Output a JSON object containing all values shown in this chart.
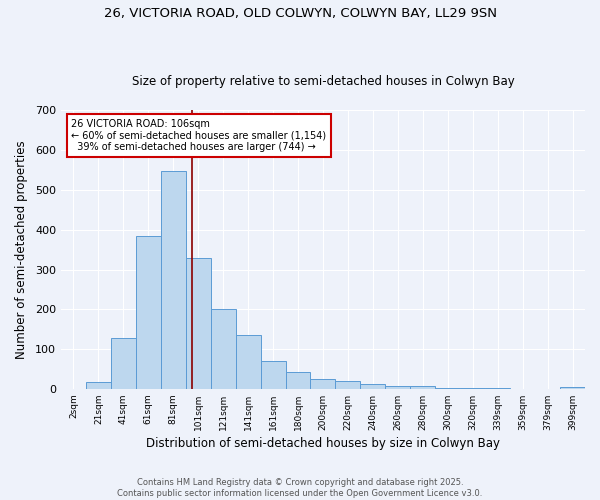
{
  "title_line1": "26, VICTORIA ROAD, OLD COLWYN, COLWYN BAY, LL29 9SN",
  "title_line2": "Size of property relative to semi-detached houses in Colwyn Bay",
  "xlabel": "Distribution of semi-detached houses by size in Colwyn Bay",
  "ylabel": "Number of semi-detached properties",
  "categories": [
    "2sqm",
    "21sqm",
    "41sqm",
    "61sqm",
    "81sqm",
    "101sqm",
    "121sqm",
    "141sqm",
    "161sqm",
    "180sqm",
    "200sqm",
    "220sqm",
    "240sqm",
    "260sqm",
    "280sqm",
    "300sqm",
    "320sqm",
    "339sqm",
    "359sqm",
    "379sqm",
    "399sqm"
  ],
  "values": [
    0,
    17,
    128,
    385,
    548,
    328,
    202,
    135,
    70,
    43,
    25,
    20,
    12,
    8,
    6,
    2,
    1,
    1,
    0,
    0,
    5
  ],
  "bar_color": "#bdd7ee",
  "bar_edge_color": "#5b9bd5",
  "property_label": "26 VICTORIA ROAD: 106sqm",
  "smaller_pct": "60%",
  "smaller_count": "1,154",
  "larger_pct": "39%",
  "larger_count": "744",
  "vline_color": "#8b0000",
  "annotation_box_color": "#ffffff",
  "annotation_box_edge": "#cc0000",
  "footer_line1": "Contains HM Land Registry data © Crown copyright and database right 2025.",
  "footer_line2": "Contains public sector information licensed under the Open Government Licence v3.0.",
  "bg_color": "#eef2fa",
  "plot_bg_color": "#eef2fa",
  "ylim": [
    0,
    700
  ],
  "yticks": [
    0,
    100,
    200,
    300,
    400,
    500,
    600,
    700
  ],
  "vline_x_index": 4.75
}
